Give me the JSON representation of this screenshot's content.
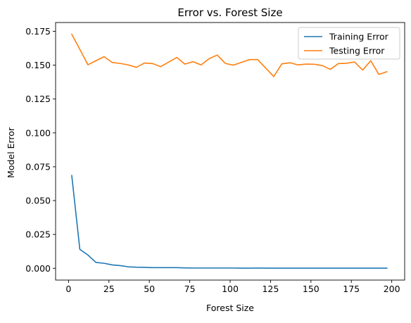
{
  "chart_data": {
    "type": "line",
    "title": "Error vs. Forest Size",
    "xlabel": "Forest Size",
    "ylabel": "Model Error",
    "xlim": [
      -8,
      208
    ],
    "ylim": [
      -0.0087,
      0.1815
    ],
    "xticks": [
      0,
      25,
      50,
      75,
      100,
      125,
      150,
      175,
      200
    ],
    "xtick_labels": [
      "0",
      "25",
      "50",
      "75",
      "100",
      "125",
      "150",
      "175",
      "200"
    ],
    "yticks": [
      0.0,
      0.025,
      0.05,
      0.075,
      0.1,
      0.125,
      0.15,
      0.175
    ],
    "ytick_labels": [
      "0.000",
      "0.025",
      "0.050",
      "0.075",
      "0.100",
      "0.125",
      "0.150",
      "0.175"
    ],
    "grid": false,
    "legend_position": "top-right",
    "x": [
      2,
      7,
      12,
      17,
      22,
      27,
      32,
      37,
      42,
      47,
      52,
      57,
      62,
      67,
      72,
      77,
      82,
      87,
      92,
      97,
      102,
      107,
      112,
      117,
      122,
      127,
      132,
      137,
      142,
      147,
      152,
      157,
      162,
      167,
      172,
      177,
      182,
      187,
      192,
      197
    ],
    "series": [
      {
        "name": "Training Error",
        "color": "#1f77b4",
        "values": [
          0.0685,
          0.014,
          0.0098,
          0.0043,
          0.0037,
          0.0025,
          0.002,
          0.0011,
          0.0008,
          0.0007,
          0.0005,
          0.0005,
          0.0005,
          0.0005,
          0.0003,
          0.0002,
          0.0002,
          0.0002,
          0.0002,
          0.0002,
          0.0002,
          0.0001,
          0.0001,
          0.0002,
          0.0001,
          0.0001,
          0.0001,
          0.0001,
          0.0001,
          0.0001,
          0.0001,
          0.0001,
          0.0001,
          0.0001,
          0.0001,
          0.0001,
          0.0001,
          0.0001,
          0.0001,
          0.0001
        ]
      },
      {
        "name": "Testing Error",
        "color": "#ff7f0e",
        "values": [
          0.1728,
          0.1617,
          0.1503,
          0.1533,
          0.1563,
          0.152,
          0.1513,
          0.1502,
          0.1484,
          0.1516,
          0.1512,
          0.1489,
          0.1523,
          0.1557,
          0.1508,
          0.1526,
          0.1502,
          0.1548,
          0.1575,
          0.1513,
          0.15,
          0.1521,
          0.1541,
          0.1541,
          0.1479,
          0.1416,
          0.151,
          0.1518,
          0.1502,
          0.1508,
          0.1507,
          0.1497,
          0.1469,
          0.1512,
          0.1514,
          0.1524,
          0.1464,
          0.1533,
          0.1432,
          0.1452
        ]
      }
    ]
  }
}
